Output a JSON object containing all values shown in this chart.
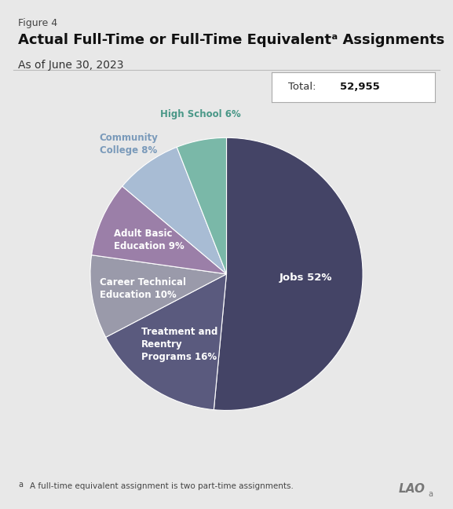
{
  "figure_label": "Figure 4",
  "title": "Actual Full-Time or Full-Time Equivalentᵃ Assignments",
  "subtitle": "As of June 30, 2023",
  "total_text": "Total: ",
  "total_number": "52,955",
  "slices": [
    {
      "label": "Jobs",
      "pct": 52,
      "color": "#444466",
      "text_color": "#ffffff",
      "label_inside": true,
      "label_r": 0.58
    },
    {
      "label": "Treatment and\nReentry\nPrograms",
      "pct": 16,
      "color": "#5a5a7e",
      "text_color": "#ffffff",
      "label_inside": true,
      "label_r": 0.62
    },
    {
      "label": "Career Technical\nEducation",
      "pct": 10,
      "color": "#9a9aaa",
      "text_color": "#ffffff",
      "label_inside": true,
      "label_r": 0.62
    },
    {
      "label": "Adult Basic\nEducation",
      "pct": 9,
      "color": "#9b7fa8",
      "text_color": "#ffffff",
      "label_inside": true,
      "label_r": 0.62
    },
    {
      "label": "Community\nCollege",
      "pct": 8,
      "color": "#a8bcd4",
      "text_color": "#7a9aba",
      "label_inside": false
    },
    {
      "label": "High School",
      "pct": 6,
      "color": "#7ab8a8",
      "text_color": "#4a9888",
      "label_inside": false
    }
  ],
  "footnote_super": "a",
  "footnote_text": "A full-time equivalent assignment is two part-time assignments.",
  "background_color": "#e8e8e8",
  "separator_color": "#bbbbbb"
}
